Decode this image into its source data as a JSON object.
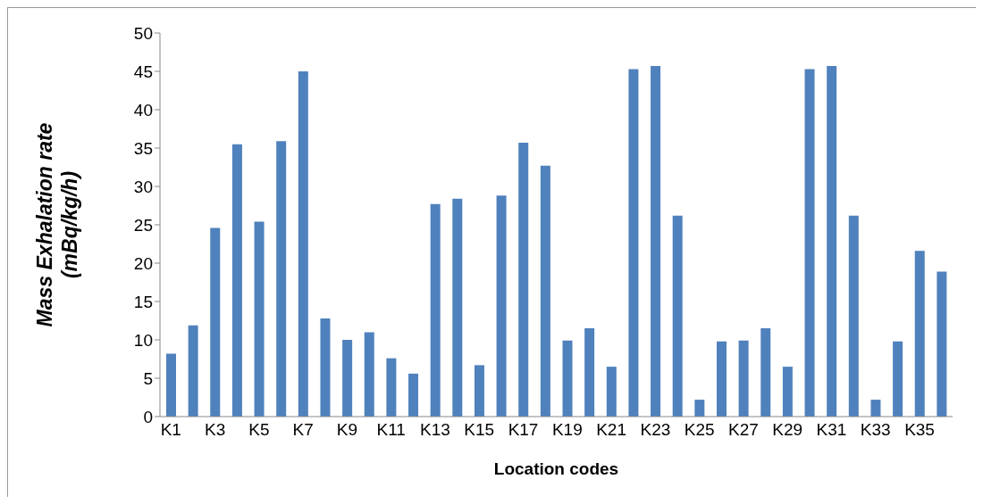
{
  "chart_data": {
    "type": "bar",
    "xlabel": "Location codes",
    "ylabel": "Mass Exhalation rate (mBq/kg/h)",
    "categories": [
      "K1",
      null,
      "K3",
      null,
      "K5",
      null,
      "K7",
      null,
      "K9",
      null,
      "K11",
      null,
      "K13",
      null,
      "K15",
      null,
      "K17",
      null,
      "K19",
      null,
      "K21",
      null,
      "K23",
      null,
      "K25",
      null,
      "K27",
      null,
      "K29",
      null,
      "K31",
      null,
      "K33",
      null,
      "K35",
      null
    ],
    "values": [
      8.2,
      11.9,
      24.6,
      35.5,
      25.4,
      35.9,
      45.0,
      12.8,
      10.0,
      11.0,
      7.6,
      5.6,
      27.7,
      28.4,
      6.7,
      28.8,
      35.7,
      32.7,
      9.9,
      11.5,
      6.5,
      45.3,
      45.7,
      26.2,
      2.2,
      9.8,
      9.9,
      11.5,
      6.5,
      45.3,
      45.7,
      26.2,
      2.2,
      9.8,
      21.6,
      18.9
    ],
    "color": "#4f81bd",
    "ylim": [
      0,
      50
    ],
    "yticks": [
      0,
      5,
      10,
      15,
      20,
      25,
      30,
      35,
      40,
      45,
      50
    ],
    "grid": false,
    "legend": false
  }
}
